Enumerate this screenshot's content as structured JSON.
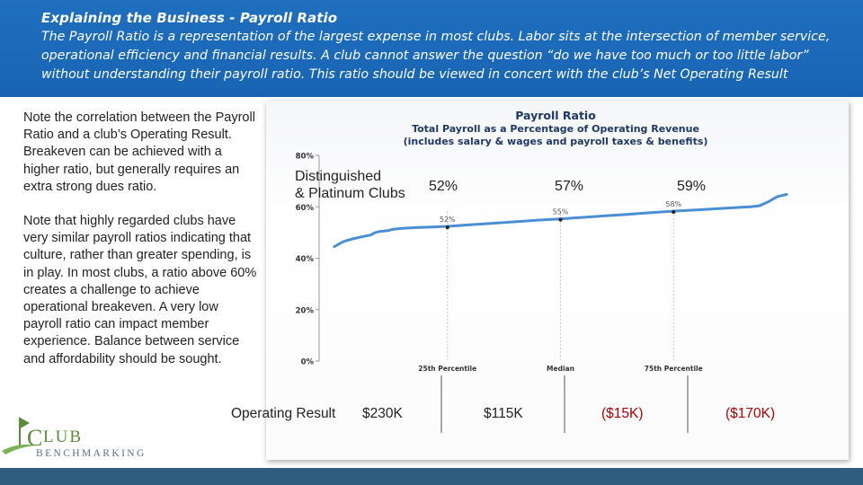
{
  "header": {
    "title": "Explaining the Business - Payroll Ratio",
    "body_lines": [
      "The Payroll Ratio is a representation of the largest expense in most clubs. Labor sits at the intersection of member service,",
      "operational efficiency and financial results. A club cannot answer the question “do we have too much or too little labor”",
      "without understanding their payroll ratio. This ratio should be viewed in concert with the club’s Net Operating Result"
    ]
  },
  "notes": {
    "note1": "Note the correlation between the Payroll Ratio and a club’s Operating Result. Breakeven can be achieved with a higher ratio, but generally requires an extra strong dues ratio.",
    "note2": "Note that highly regarded clubs have very similar payroll ratios indicating that culture, rather than greater spending, is in play. In most clubs, a ratio above 60% creates a challenge to achieve operational breakeven. A very low payroll ratio can impact member experience. Balance between service and affordability should be sought."
  },
  "overlay": {
    "segment_label_lines": [
      "Distinguished",
      "& Platinum Clubs"
    ],
    "percent_labels": [
      "52%",
      "57%",
      "59%"
    ],
    "operating_result_label": "Operating Result",
    "operating_results": [
      "$230K",
      "$115K",
      "($15K)",
      "($170K)"
    ],
    "negative_color": "#b00000"
  },
  "brand": {
    "logo_text_1": "LUB",
    "logo_text_2": "BENCHMARKING",
    "logo_initial": "C"
  },
  "colors": {
    "header_bg": "#1a66b6",
    "line": "#4a8fd6",
    "chart_title": "#1f3864",
    "bottom_bar": "#2e5d7f"
  },
  "chart_data": {
    "type": "line",
    "title": "Payroll Ratio",
    "subtitle_lines": [
      "Total Payroll as a Percentage of Operating Revenue",
      "(includes salary & wages and payroll taxes & benefits)"
    ],
    "y_ticks": [
      "80%",
      "60%",
      "40%",
      "20%",
      "0%"
    ],
    "y_tick_values": [
      80,
      60,
      40,
      20,
      0
    ],
    "ylim": [
      0,
      80
    ],
    "x_ticks": [
      "25th Percentile",
      "Median",
      "75th Percentile"
    ],
    "x_tick_percentiles": [
      25,
      50,
      75
    ],
    "xlim": [
      0,
      100
    ],
    "grid": false,
    "series": [
      {
        "x": [
          0,
          2,
          4,
          6,
          8,
          9,
          10,
          12,
          13,
          15,
          18,
          21,
          25,
          30,
          35,
          40,
          45,
          50,
          55,
          60,
          65,
          70,
          75,
          80,
          85,
          88,
          90,
          92,
          94,
          96,
          98,
          100
        ],
        "values": [
          44.5,
          46.5,
          47.5,
          48.3,
          49,
          50,
          50.4,
          50.8,
          51.3,
          51.6,
          51.9,
          52.1,
          52.4,
          53,
          53.6,
          54.2,
          54.8,
          55.3,
          55.9,
          56.5,
          57.1,
          57.7,
          58.3,
          58.8,
          59.3,
          59.6,
          59.8,
          60,
          60.4,
          62,
          64,
          64.8
        ]
      }
    ],
    "point_markers": [
      {
        "x": 25,
        "y": 52,
        "label": "52%"
      },
      {
        "x": 50,
        "y": 55,
        "label": "55%"
      },
      {
        "x": 75,
        "y": 58,
        "label": "58%"
      }
    ]
  }
}
